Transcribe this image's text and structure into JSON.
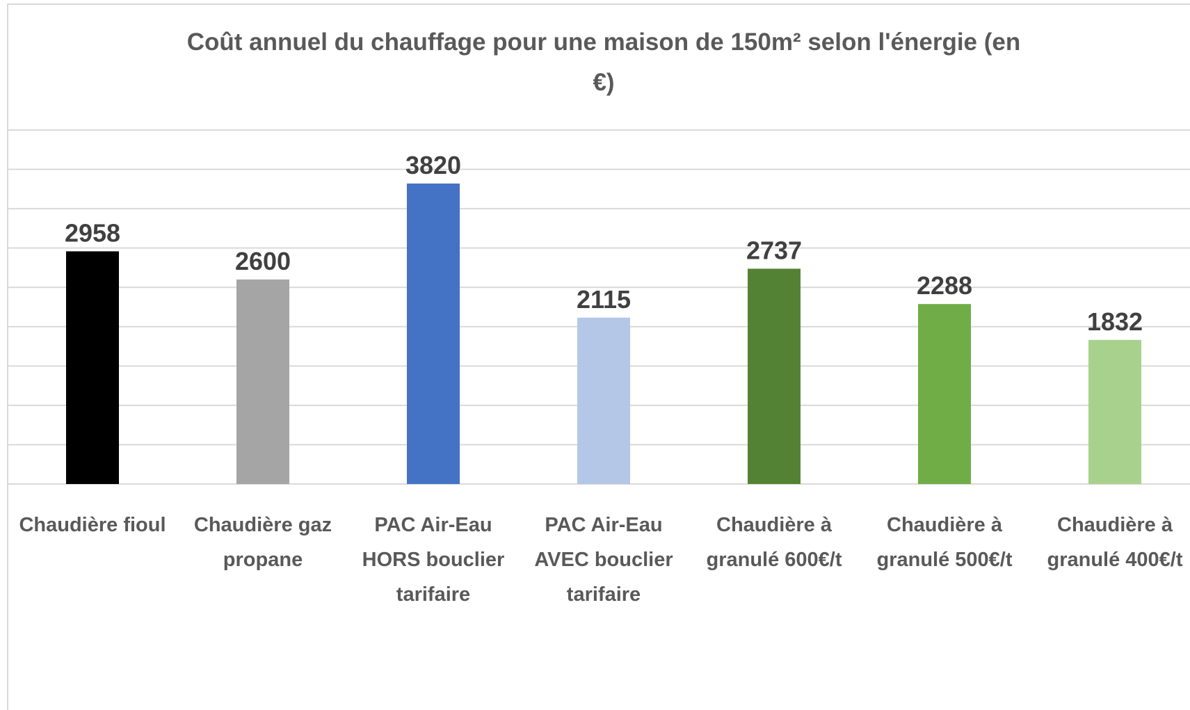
{
  "chart_data": {
    "type": "bar",
    "title": "Coût annuel du chauffage pour une maison de 150m² selon l'énergie (en €)",
    "categories": [
      "Chaudière fioul",
      "Chaudière gaz propane",
      "PAC Air-Eau HORS bouclier tarifaire",
      "PAC Air-Eau AVEC bouclier tarifaire",
      "Chaudière à granulé 600€/t",
      "Chaudière à granulé 500€/t",
      "Chaudière à granulé 400€/t"
    ],
    "values": [
      2958,
      2600,
      3820,
      2115,
      2737,
      2288,
      1832
    ],
    "colors": [
      "#000000",
      "#a5a5a5",
      "#4472c4",
      "#b4c7e7",
      "#548235",
      "#70ad47",
      "#a9d18e"
    ],
    "ylim": [
      0,
      4500
    ],
    "yticks": [
      0,
      500,
      1000,
      1500,
      2000,
      2500,
      3000,
      3500,
      4000,
      4500
    ],
    "grid": true
  }
}
